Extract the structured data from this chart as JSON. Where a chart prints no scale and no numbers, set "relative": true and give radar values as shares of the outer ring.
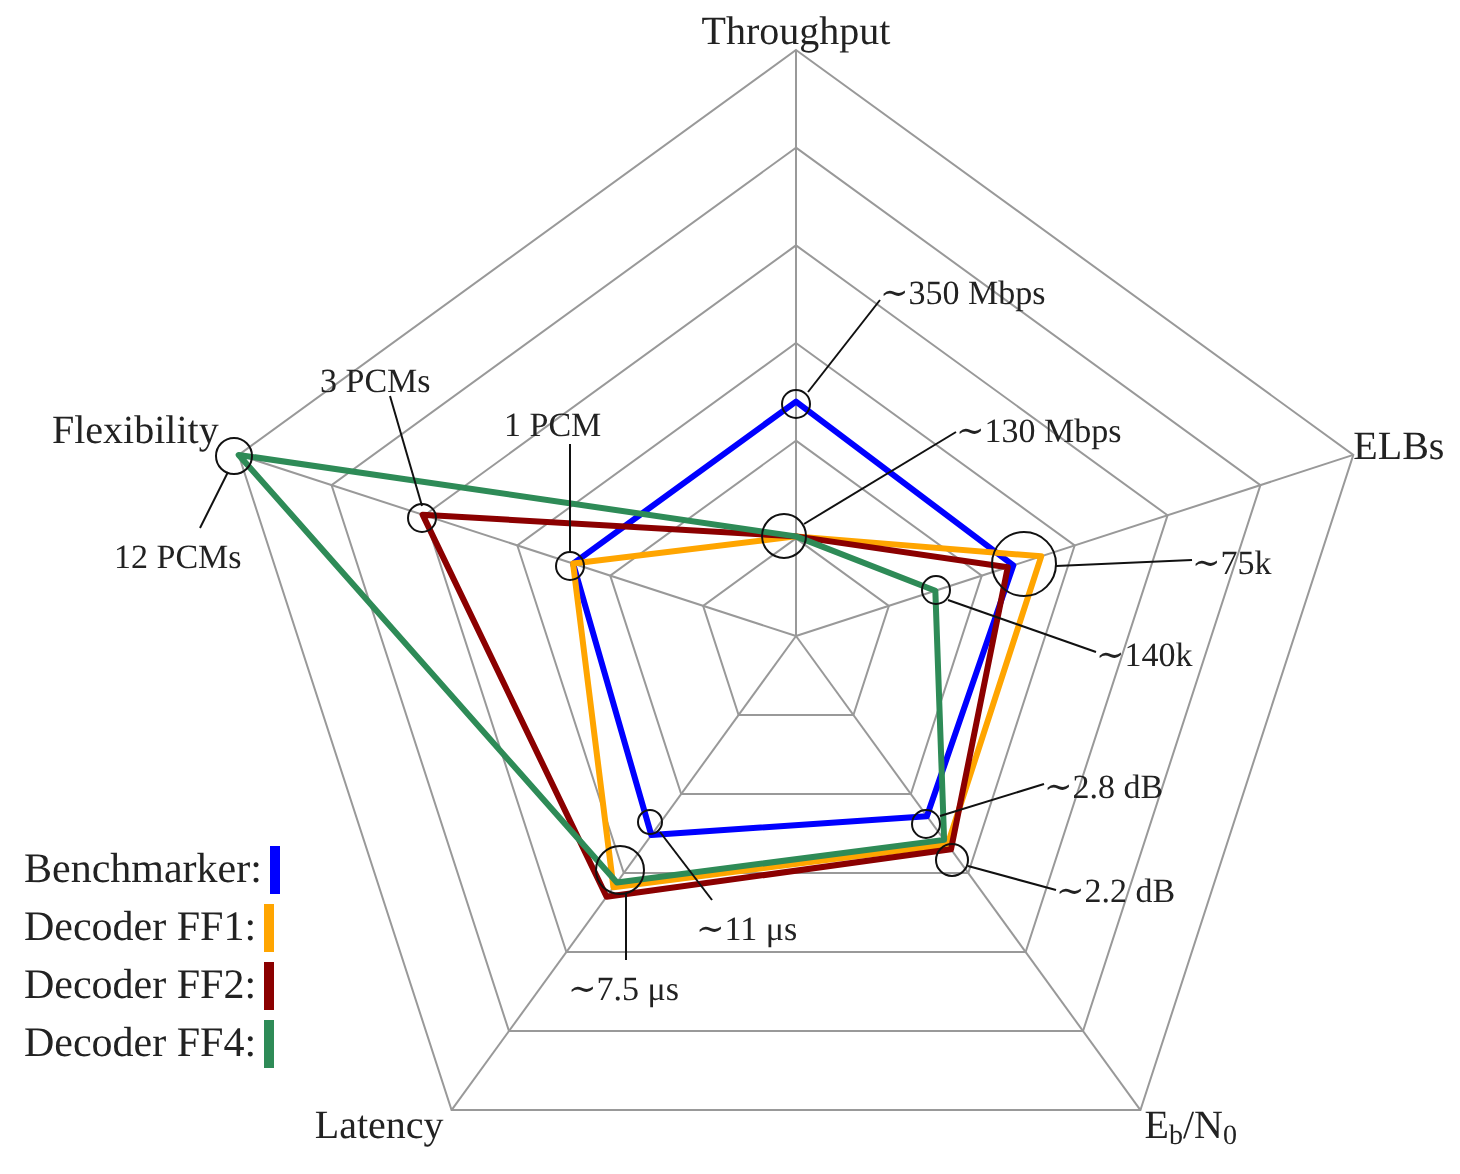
{
  "chart_data": {
    "type": "radar",
    "relative": true,
    "categories": [
      "Throughput",
      "ELBs",
      "E$_{b}$/N$_{0}$",
      "Latency",
      "Flexibility"
    ],
    "series": [
      {
        "name": "Benchmarker:",
        "color": "#0000ff",
        "values": [
          0.4,
          0.39,
          0.38,
          0.42,
          0.4
        ]
      },
      {
        "name": "Decoder FF1:",
        "color": "#ffa500",
        "values": [
          0.17,
          0.44,
          0.44,
          0.53,
          0.4
        ]
      },
      {
        "name": "Decoder FF2:",
        "color": "#8b0000",
        "values": [
          0.17,
          0.38,
          0.45,
          0.55,
          0.67
        ]
      },
      {
        "name": "Decoder FF4:",
        "color": "#2e8b57",
        "values": [
          0.17,
          0.25,
          0.43,
          0.52,
          1.0
        ]
      }
    ],
    "annotations": [
      "∼350 Mbps",
      "∼130 Mbps",
      "∼75k",
      "∼140k",
      "∼2.8 dB",
      "∼2.2 dB",
      "∼11 μs",
      "∼7.5 μs",
      "3 PCMs",
      "1 PCM",
      "12 PCMs"
    ],
    "legend": "bottom left",
    "grid": true
  }
}
